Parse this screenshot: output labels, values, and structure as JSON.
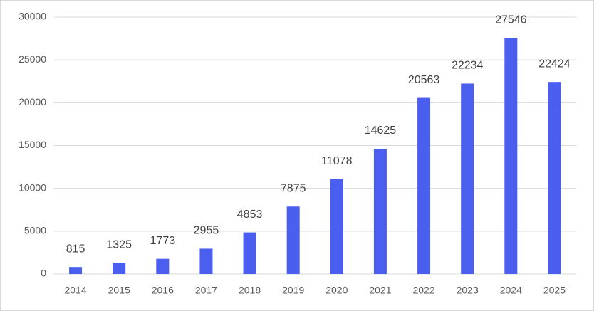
{
  "chart_data": {
    "type": "bar",
    "categories": [
      "2014",
      "2015",
      "2016",
      "2017",
      "2018",
      "2019",
      "2020",
      "2021",
      "2022",
      "2023",
      "2024",
      "2025"
    ],
    "values": [
      815,
      1325,
      1773,
      2955,
      4853,
      7875,
      11078,
      14625,
      20563,
      22234,
      27546,
      22424
    ],
    "color": "#4a5ff0",
    "ylim": [
      0,
      30000
    ],
    "yticks": [
      0,
      5000,
      10000,
      15000,
      20000,
      25000,
      30000
    ],
    "grid": true
  }
}
